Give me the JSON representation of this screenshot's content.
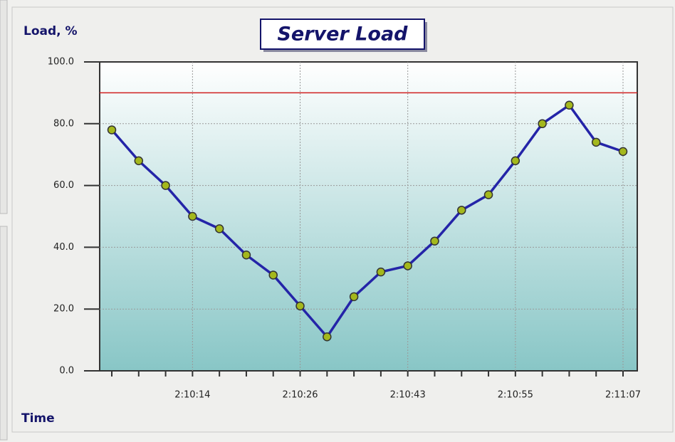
{
  "chart_data": {
    "type": "line",
    "title": "Server Load",
    "y_label": "Load, %",
    "x_label": "Time",
    "categories": [
      null,
      null,
      null,
      "2:10:14",
      null,
      null,
      null,
      "2:10:26",
      null,
      null,
      null,
      "2:10:43",
      null,
      null,
      null,
      "2:10:55",
      null,
      null,
      null,
      "2:11:07"
    ],
    "series": [
      {
        "name": "Load",
        "color": "#2424a8",
        "marker_color": "#a4b81c",
        "values": [
          78,
          68,
          60,
          50,
          46,
          37.5,
          31,
          21,
          11,
          24,
          32,
          34,
          42,
          52,
          57,
          68,
          80,
          86,
          74,
          71
        ]
      }
    ],
    "threshold": 90,
    "threshold_color": "#d02020",
    "ylim": [
      0,
      100
    ],
    "yticks": [
      {
        "value": 0,
        "label": "0.0"
      },
      {
        "value": 20,
        "label": "20.0"
      },
      {
        "value": 40,
        "label": "40.0"
      },
      {
        "value": 60,
        "label": "60.0"
      },
      {
        "value": 80,
        "label": "80.0"
      },
      {
        "value": 100,
        "label": "100.0"
      }
    ],
    "grid": true
  }
}
